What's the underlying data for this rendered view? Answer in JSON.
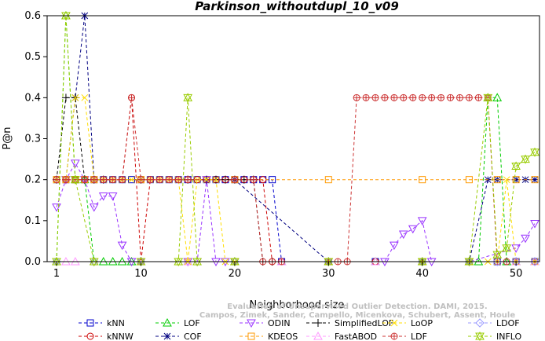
{
  "chart_data": {
    "type": "line",
    "title": "Parkinson_withoutdupl_10_v09",
    "xlabel": "Neighborhood size",
    "ylabel": "P@n",
    "xlim": [
      1,
      52
    ],
    "ylim": [
      0,
      0.6
    ],
    "x_ticks": [
      1,
      10,
      20,
      30,
      40,
      50
    ],
    "y_ticks": [
      0.0,
      0.1,
      0.2,
      0.3,
      0.4,
      0.5,
      0.6
    ],
    "grid": false,
    "legend_position": "bottom",
    "credit": {
      "line1": "Evaluation of Unsupervised Outlier Detection. DAMI, 2015.",
      "line2": "Campos, Zimek, Sander, Campello, Micenkova, Schubert, Assent, Houle"
    },
    "series": [
      {
        "name": "kNN",
        "color": "#0000cc",
        "marker": "square",
        "x": [
          1,
          2,
          3,
          4,
          5,
          6,
          7,
          8,
          9,
          10,
          11,
          12,
          13,
          14,
          15,
          16,
          17,
          18,
          19,
          20,
          21,
          22,
          23,
          24,
          25,
          30,
          35,
          40,
          45,
          48,
          50,
          52
        ],
        "y": [
          0.2,
          0.2,
          0.2,
          0.2,
          0.2,
          0.2,
          0.2,
          0.2,
          0.2,
          0.2,
          0.2,
          0.2,
          0.2,
          0.2,
          0.2,
          0.2,
          0.2,
          0.2,
          0.2,
          0.2,
          0.2,
          0.2,
          0.2,
          0.2,
          0,
          0,
          0,
          0,
          0,
          0,
          0,
          0
        ]
      },
      {
        "name": "kNNW",
        "color": "#cc0000",
        "marker": "circle",
        "x": [
          1,
          2,
          3,
          4,
          5,
          6,
          7,
          8,
          9,
          10,
          11,
          12,
          13,
          14,
          15,
          16,
          17,
          18,
          19,
          20,
          21,
          22,
          23,
          24,
          30,
          35,
          40,
          45,
          48,
          50,
          52
        ],
        "y": [
          0.2,
          0.2,
          0.2,
          0.2,
          0.2,
          0.2,
          0.2,
          0.2,
          0.4,
          0,
          0.2,
          0.2,
          0.2,
          0.2,
          0.2,
          0.2,
          0.2,
          0.2,
          0.2,
          0.2,
          0.2,
          0.2,
          0.2,
          0,
          0,
          0,
          0,
          0,
          0,
          0,
          0
        ]
      },
      {
        "name": "LOF",
        "color": "#00cc00",
        "marker": "triangle-up",
        "x": [
          1,
          2,
          3,
          4,
          5,
          6,
          7,
          8,
          9,
          10,
          15,
          20,
          25,
          30,
          35,
          40,
          45,
          46,
          47,
          48,
          49,
          50,
          52
        ],
        "y": [
          0,
          0.6,
          0.2,
          0.2,
          0,
          0,
          0,
          0,
          0,
          0,
          0,
          0,
          0,
          0,
          0,
          0,
          0,
          0,
          0.4,
          0.4,
          0,
          0,
          0
        ]
      },
      {
        "name": "COF",
        "color": "#000080",
        "marker": "asterisk",
        "x": [
          1,
          2,
          3,
          4,
          5,
          10,
          20,
          30,
          40,
          45,
          47,
          48,
          50,
          51,
          52
        ],
        "y": [
          0.2,
          0.2,
          0.4,
          0.6,
          0.2,
          0.2,
          0.2,
          0,
          0,
          0,
          0.2,
          0.2,
          0.2,
          0.2,
          0.2
        ]
      },
      {
        "name": "ODIN",
        "color": "#9933ff",
        "marker": "triangle-down",
        "x": [
          1,
          2,
          3,
          4,
          5,
          6,
          7,
          8,
          9,
          10,
          15,
          16,
          17,
          18,
          19,
          20,
          30,
          36,
          37,
          38,
          39,
          40,
          41,
          45,
          50,
          51,
          52
        ],
        "y": [
          0.133,
          0.2,
          0.24,
          0.2,
          0.133,
          0.16,
          0.16,
          0.04,
          0,
          0,
          0,
          0,
          0.2,
          0,
          0,
          0,
          0,
          0,
          0.04,
          0.067,
          0.08,
          0.1,
          0,
          0,
          0.033,
          0.057,
          0.093
        ]
      },
      {
        "name": "KDEOS",
        "color": "#ff9900",
        "marker": "square",
        "x": [
          1,
          2,
          3,
          4,
          5,
          10,
          20,
          30,
          40,
          45,
          48,
          50,
          52
        ],
        "y": [
          0.2,
          0.2,
          0.2,
          0.2,
          0.2,
          0.2,
          0.2,
          0.2,
          0.2,
          0.2,
          0.2,
          0.2,
          0.2
        ]
      },
      {
        "name": "SimplifiedLOF",
        "color": "#000000",
        "marker": "plus",
        "x": [
          1,
          2,
          3,
          4,
          5,
          6,
          10,
          15,
          17,
          18,
          19,
          20,
          21,
          22,
          23,
          24,
          30,
          40,
          50,
          52
        ],
        "y": [
          0.2,
          0.4,
          0.4,
          0.2,
          0.2,
          0.2,
          0.2,
          0.2,
          0.2,
          0.2,
          0.2,
          0.2,
          0.2,
          0.2,
          0,
          0,
          0,
          0,
          0,
          0
        ]
      },
      {
        "name": "FastABOD",
        "color": "#ff99ff",
        "marker": "triangle-up",
        "x": [
          1,
          2,
          3,
          5,
          10,
          15,
          20,
          25,
          30,
          35,
          40,
          45,
          50,
          52
        ],
        "y": [
          0,
          0,
          0,
          0,
          0,
          0,
          0,
          0,
          0,
          0,
          0,
          0,
          0,
          0
        ]
      },
      {
        "name": "LoOP",
        "color": "#ffdd00",
        "marker": "cross",
        "x": [
          1,
          2,
          3,
          4,
          5,
          6,
          7,
          8,
          9,
          10,
          11,
          12,
          13,
          14,
          15,
          16,
          17,
          18,
          19,
          20,
          30,
          40,
          45,
          47,
          48,
          49,
          50,
          52
        ],
        "y": [
          0.2,
          0.2,
          0.4,
          0.4,
          0.2,
          0.2,
          0.2,
          0.2,
          0.2,
          0.2,
          0.2,
          0.2,
          0.2,
          0.2,
          0,
          0.2,
          0.2,
          0.2,
          0,
          0,
          0,
          0,
          0,
          0,
          0,
          0.2,
          0,
          0
        ]
      },
      {
        "name": "LDF",
        "color": "#cc3333",
        "marker": "circle-plus",
        "x": [
          1,
          2,
          3,
          4,
          5,
          6,
          7,
          8,
          9,
          10,
          11,
          12,
          13,
          14,
          15,
          20,
          22,
          23,
          24,
          25,
          30,
          31,
          32,
          33,
          34,
          35,
          36,
          37,
          38,
          39,
          40,
          41,
          42,
          43,
          44,
          45,
          46,
          47,
          48,
          49,
          50,
          52
        ],
        "y": [
          0.2,
          0.2,
          0.2,
          0.2,
          0.2,
          0.2,
          0.2,
          0.2,
          0.4,
          0.2,
          0.2,
          0.2,
          0.2,
          0.2,
          0.2,
          0.2,
          0.2,
          0,
          0,
          0,
          0,
          0,
          0,
          0.4,
          0.4,
          0.4,
          0.4,
          0.4,
          0.4,
          0.4,
          0.4,
          0.4,
          0.4,
          0.4,
          0.4,
          0.4,
          0.4,
          0.4,
          0,
          0,
          0,
          0
        ]
      },
      {
        "name": "LDOF",
        "color": "#9999ff",
        "marker": "diamond",
        "x": [
          1,
          5,
          10,
          20,
          30,
          40,
          45,
          48,
          50,
          52
        ],
        "y": [
          0,
          0,
          0,
          0,
          0,
          0,
          0,
          0,
          0,
          0
        ]
      },
      {
        "name": "INFLO",
        "color": "#99cc00",
        "marker": "star",
        "x": [
          1,
          2,
          3,
          5,
          10,
          14,
          15,
          16,
          20,
          30,
          40,
          45,
          47,
          48,
          49,
          50,
          51,
          52
        ],
        "y": [
          0,
          0.6,
          0.2,
          0,
          0,
          0,
          0.4,
          0,
          0,
          0,
          0,
          0,
          0.4,
          0.017,
          0.033,
          0.233,
          0.25,
          0.267
        ]
      }
    ]
  }
}
